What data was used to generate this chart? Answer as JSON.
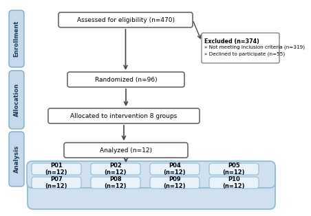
{
  "enrollment_label": "Enrollment",
  "allocation_label": "Allocation",
  "analysis_label": "Analysis",
  "box1_text": "Assessed for eligibility (n=470)",
  "box2_text": "Randomized (n=96)",
  "box3_text": "Allocated to intervention 8 groups",
  "box4_text": "Analyzed (n=12)",
  "excluded_title": "Excluded (n=374)",
  "excluded_line2": "» Not meeting inclusion criteria (n=319)",
  "excluded_line3": "» Declined to participate (n=55)",
  "sub_boxes": [
    [
      "P01\n(n=12)",
      "P02\n(n=12)",
      "P04\n(n=12)",
      "P05\n(n=12)"
    ],
    [
      "P07\n(n=12)",
      "P08\n(n=12)",
      "P09\n(n=12)",
      "P10\n(n=12)"
    ]
  ],
  "sidebar_bg": "#c5d9ea",
  "main_box_bg": "#ffffff",
  "sub_group_bg": "#cfe0f0",
  "sub_box_bg": "#e8f2fb",
  "arrow_color": "#444444",
  "border_color": "#666666",
  "text_color": "#000000",
  "sidebar_text_color": "#1a3a5c",
  "sidebar_border": "#7aaac8"
}
